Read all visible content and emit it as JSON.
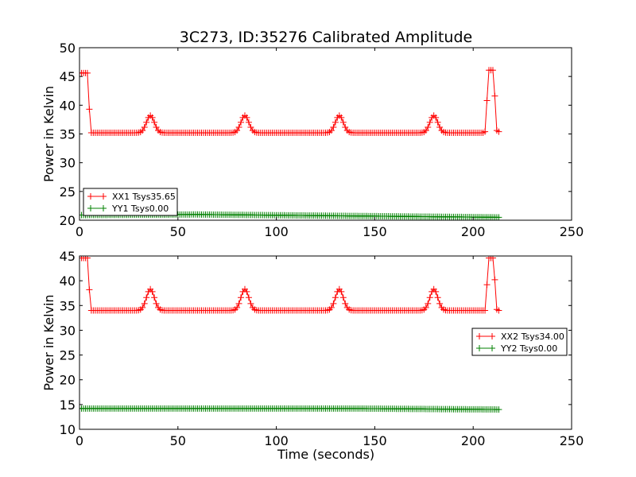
{
  "figure": {
    "title": "3C273, ID:35276 Calibrated Amplitude",
    "xlabel": "Time (seconds)"
  },
  "colors": {
    "xx": "#ff0000",
    "yy": "#008000"
  },
  "chart_data": [
    {
      "type": "line",
      "title": "3C273, ID:35276 Calibrated Amplitude",
      "xlabel": "",
      "ylabel": "Power in Kelvin",
      "xlim": [
        0,
        250
      ],
      "ylim": [
        20,
        50
      ],
      "xticks": [
        0,
        50,
        100,
        150,
        200,
        250
      ],
      "yticks": [
        20,
        25,
        30,
        35,
        40,
        45,
        50
      ],
      "grid": false,
      "legend": "lower-left",
      "series": [
        {
          "name": "XX1 Tsys35.65",
          "color": "#ff0000",
          "marker": "plus",
          "x_start": 0,
          "x_end": 213,
          "x_step": 1,
          "baseline": 35.2,
          "high_segments": [
            [
              0,
              4,
              45.6
            ],
            [
              208,
              210,
              46.1
            ]
          ],
          "peaks": [
            [
              36,
              38.2
            ],
            [
              84,
              38.2
            ],
            [
              132,
              38.2
            ],
            [
              180,
              38.2
            ]
          ],
          "points": [
            [
              5,
              39.3
            ],
            [
              6,
              35.2
            ],
            [
              206,
              35.4
            ],
            [
              207,
              40.8
            ],
            [
              211,
              41.6
            ],
            [
              212,
              35.6
            ],
            [
              213,
              35.4
            ]
          ]
        },
        {
          "name": "YY1 Tsys0.00",
          "color": "#008000",
          "marker": "plus",
          "x_start": 0,
          "x_end": 213,
          "x_step": 1,
          "baseline": 20.6,
          "segments": [
            [
              0,
              20.9
            ],
            [
              60,
              21.0
            ],
            [
              213,
              20.5
            ]
          ]
        }
      ]
    },
    {
      "type": "line",
      "xlabel": "Time (seconds)",
      "ylabel": "Power in Kelvin",
      "xlim": [
        0,
        250
      ],
      "ylim": [
        10,
        45
      ],
      "xticks": [
        0,
        50,
        100,
        150,
        200,
        250
      ],
      "yticks": [
        10,
        15,
        20,
        25,
        30,
        35,
        40,
        45
      ],
      "grid": false,
      "legend": "center-right",
      "series": [
        {
          "name": "XX2 Tsys34.00",
          "color": "#ff0000",
          "marker": "plus",
          "x_start": 0,
          "x_end": 213,
          "x_step": 1,
          "baseline": 34.0,
          "high_segments": [
            [
              0,
              4,
              44.6
            ],
            [
              208,
              210,
              44.6
            ]
          ],
          "peaks": [
            [
              36,
              38.3
            ],
            [
              84,
              38.3
            ],
            [
              132,
              38.3
            ],
            [
              180,
              38.3
            ]
          ],
          "points": [
            [
              5,
              38.2
            ],
            [
              6,
              34.0
            ],
            [
              206,
              34.0
            ],
            [
              207,
              39.2
            ],
            [
              211,
              40.2
            ],
            [
              212,
              34.2
            ],
            [
              213,
              34.0
            ]
          ]
        },
        {
          "name": "YY2 Tsys0.00",
          "color": "#008000",
          "marker": "plus",
          "x_start": 0,
          "x_end": 213,
          "x_step": 1,
          "baseline": 14.0,
          "segments": [
            [
              0,
              14.2
            ],
            [
              140,
              14.2
            ],
            [
              213,
              14.0
            ]
          ]
        }
      ]
    }
  ]
}
